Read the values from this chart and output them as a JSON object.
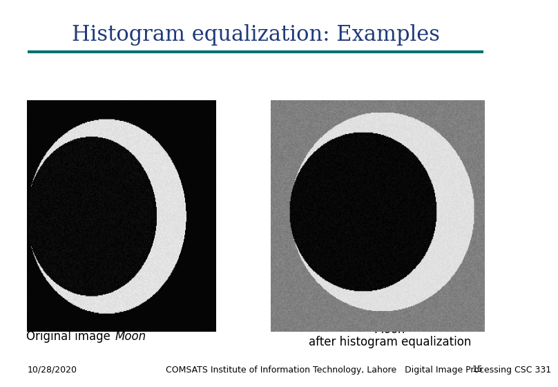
{
  "title": "Histogram equalization: Examples",
  "title_color": "#1F3A7A",
  "title_fontsize": 22,
  "separator_color": "#007070",
  "separator_linewidth": 3,
  "footer_date": "10/28/2020",
  "footer_institute": "COMSATS Institute of Information Technology, Lahore",
  "footer_course": "Digital Image Processing CSC 331",
  "footer_page": "15",
  "footer_fontsize": 9,
  "label_left": "Original image ",
  "label_left_italic": "Moon",
  "label_right_line1": "Moon",
  "label_right_line2": "after histogram equalization",
  "label_fontsize": 12,
  "bg_color": "#ffffff"
}
